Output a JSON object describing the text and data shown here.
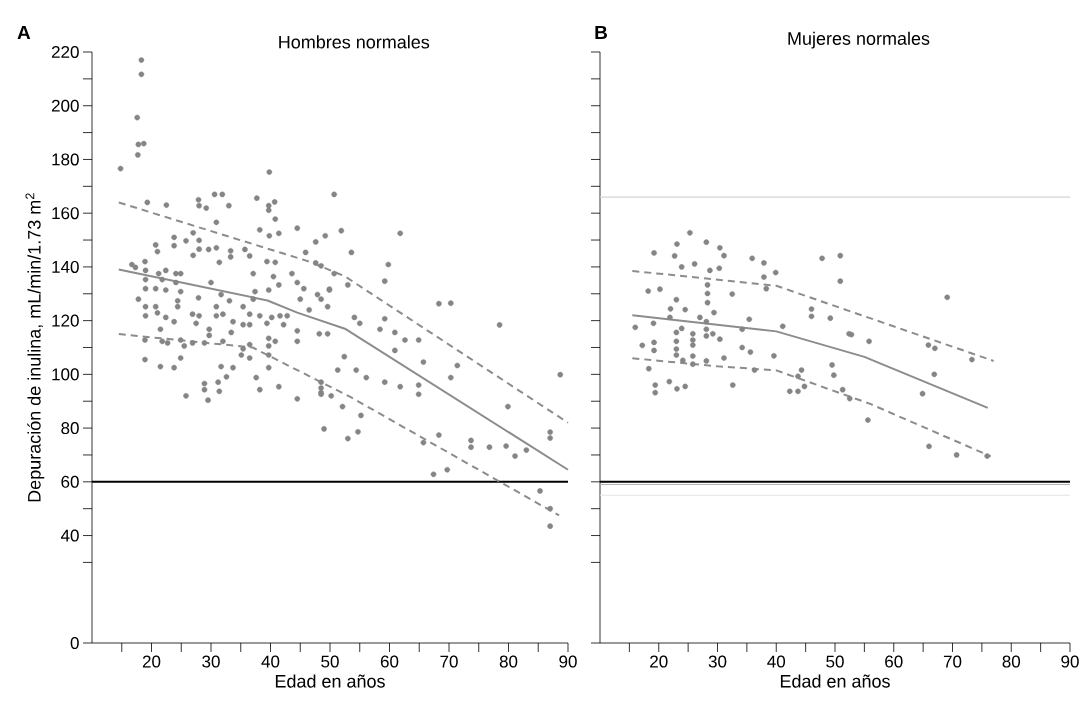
{
  "chart_data": [
    {
      "type": "scatter",
      "marker": "circle",
      "title": "Hombres normales",
      "xlabel": "Edad en años",
      "ylabel": "Depuración de inulina, mL/min/1.73 m$^{2}$",
      "annotations": [
        "A"
      ],
      "xlim": [
        10,
        90
      ],
      "ylim": [
        0,
        220
      ],
      "xticks": [
        {
          "value": 15,
          "label": null
        },
        20,
        {
          "value": 25,
          "label": null
        },
        30,
        {
          "value": 35,
          "label": null
        },
        40,
        {
          "value": 45,
          "label": null
        },
        50,
        {
          "value": 55,
          "label": null
        },
        60,
        {
          "value": 65,
          "label": null
        },
        70,
        {
          "value": 75,
          "label": null
        },
        80,
        {
          "value": 85,
          "label": null
        },
        90
      ],
      "yticks": [
        0,
        {
          "value": 30,
          "label": null
        },
        40,
        {
          "value": 50,
          "label": null
        },
        60,
        {
          "value": 70,
          "label": null
        },
        80,
        {
          "value": 90,
          "label": null
        },
        100,
        {
          "value": 110,
          "label": null
        },
        120,
        {
          "value": 130,
          "label": null
        },
        140,
        {
          "value": 150,
          "label": null
        },
        160,
        {
          "value": 170,
          "label": null
        },
        180,
        {
          "value": 190,
          "label": null
        },
        200,
        {
          "value": 210,
          "label": null
        },
        220
      ],
      "ref_lines": [
        {
          "axis": "y",
          "value": 60,
          "color": "#000000"
        }
      ],
      "series": [
        {
          "color": "#858585",
          "x": [
            18.3,
            18.3,
            17.6,
            17.8,
            18.7,
            17.7,
            14.8,
            39.8,
            30.6,
            31.9,
            37.7,
            50.7,
            27.9,
            28,
            29.2,
            33,
            22.5,
            19.3,
            40.7,
            39.7,
            39.7,
            40.8,
            30.9,
            44.5,
            38.2,
            41.4,
            39.8,
            27,
            23.8,
            23.8,
            25.8,
            28,
            28,
            20.7,
            21,
            27,
            29.6,
            30.9,
            33.3,
            33.3,
            35.7,
            36.5,
            45.9,
            47.6,
            49.2,
            18.9,
            31.4,
            39.4,
            40.8,
            47.6,
            48.5,
            50.7,
            16.7,
            17.3,
            19,
            19,
            19,
            21.2,
            22.4,
            24.1,
            24.1,
            24.9,
            24.9,
            21.8,
            20.7,
            22.4,
            24.4,
            24.4,
            17.8,
            19,
            20.7,
            21,
            22.4,
            19,
            23.8,
            21.5,
            18.9,
            18.9,
            21.5,
            23.8,
            21.8,
            22.7,
            24.9,
            25.5,
            24.9,
            27.9,
            30,
            31.7,
            33.1,
            35.4,
            37.1,
            37.4,
            37.1,
            39.7,
            40.5,
            41.4,
            43.6,
            44.5,
            45.6,
            45,
            47.9,
            48.5,
            49.9,
            46.5,
            49.6,
            26.9,
            27.5,
            28,
            30.9,
            30.9,
            32,
            33.7,
            35.4,
            36.5,
            38.2,
            40.2,
            41.6,
            42.8,
            36.5,
            39.4,
            42.2,
            44.5,
            33.4,
            29.7,
            29.7,
            44.5,
            48.2,
            49.6,
            26.9,
            28.9,
            32,
            35.4,
            36.5,
            39.7,
            39.7,
            39.7,
            40.8,
            35.1,
            36.5,
            31.7,
            33.7,
            39.7,
            37.6,
            32.6,
            31.2,
            28.9,
            28.9,
            31.4,
            25.8,
            29.5,
            38.2,
            41.4,
            44.5,
            48.5,
            48.5,
            51.9,
            61.8,
            53.6,
            59.8,
            59.2,
            68.3,
            70.3,
            78.5,
            49.9,
            53,
            59.2,
            58.4,
            60.9,
            62.6,
            64.9,
            54.1,
            55,
            60.9,
            65.7,
            71.4,
            52.4,
            51.3,
            54.4,
            56.1,
            59.2,
            61.8,
            64.9,
            64.9,
            70.3,
            79.9,
            87,
            87,
            88.7,
            48.5,
            48.5,
            50.2,
            52.1,
            55.2,
            49,
            53,
            54.7,
            65.7,
            68.3,
            73.7,
            73.7,
            76.8,
            79.6,
            81.1,
            83,
            69.7,
            67.4,
            85.3,
            87,
            87
          ],
          "values": [
            217,
            211.7,
            195.6,
            185.6,
            185.9,
            181.7,
            176.6,
            175.3,
            167,
            167,
            165.6,
            167,
            165,
            162.8,
            161.9,
            162.8,
            163,
            164,
            164.2,
            162.8,
            161.1,
            157.8,
            156.6,
            154.4,
            153.8,
            152.5,
            151.6,
            152.7,
            151,
            147.9,
            149.7,
            149.9,
            146.6,
            148.2,
            145.7,
            144.3,
            146.5,
            147.1,
            146,
            143.7,
            146.5,
            144.1,
            145.4,
            149.3,
            151.6,
            142,
            141.7,
            142,
            141.7,
            141.5,
            140.4,
            137.5,
            140.9,
            139.8,
            138.7,
            135.3,
            131.9,
            137.5,
            138.7,
            137.5,
            134.2,
            130.8,
            137.5,
            135.3,
            131.9,
            131.4,
            127.4,
            125.2,
            128,
            125.2,
            125.2,
            122.9,
            121.2,
            121.8,
            119.6,
            116.8,
            112.8,
            105.5,
            102.9,
            102.5,
            112.3,
            111.7,
            112.8,
            110.6,
            106.1,
            128.5,
            134.2,
            129.7,
            127.4,
            125.2,
            137.5,
            130.8,
            128,
            131.4,
            136.4,
            133.3,
            137.5,
            134.2,
            131.9,
            128,
            129.7,
            128,
            131.4,
            124,
            125.2,
            122.4,
            119,
            121.8,
            125.2,
            121.8,
            122.4,
            119.6,
            118.5,
            122.4,
            121.8,
            121.2,
            121.8,
            121.8,
            118.5,
            119,
            118.5,
            116.2,
            115.6,
            116.8,
            114.5,
            112.3,
            115.1,
            115.1,
            111.7,
            111.7,
            112.3,
            109.5,
            111.1,
            113.4,
            110.6,
            107.2,
            112.3,
            107.2,
            106.1,
            102.9,
            102.5,
            102.5,
            98.8,
            99.1,
            97.1,
            96.6,
            94.3,
            93.7,
            92,
            90.4,
            94.3,
            95.4,
            90.9,
            97.1,
            93.2,
            153.5,
            152.5,
            145.4,
            140.9,
            134.7,
            126.3,
            126.5,
            118.4,
            131.7,
            133.3,
            120.7,
            116.8,
            115.6,
            112.8,
            112.8,
            121.2,
            119,
            108.9,
            104.6,
            103.3,
            106.6,
            101.6,
            101.6,
            98.8,
            97.1,
            95.4,
            96,
            92.6,
            98.8,
            88,
            78.5,
            76.3,
            99.9,
            94.9,
            92.6,
            92,
            88,
            84.7,
            79.7,
            76.1,
            78.6,
            74.6,
            77.4,
            75.4,
            72.9,
            72.9,
            73.3,
            69.6,
            71.8,
            64.5,
            62.8,
            56.6,
            50,
            43.5
          ]
        },
        {
          "type": "line",
          "color": "#8c8c8c",
          "marker": "none",
          "line_style": "solid",
          "x": [
            14.5,
            39.5,
            44.5,
            52.5,
            90
          ],
          "values": [
            139,
            127.5,
            123,
            117,
            64.5
          ]
        },
        {
          "type": "line",
          "color": "#8c8c8c",
          "marker": "none",
          "line_style": "dashed",
          "x": [
            14.5,
            46.5,
            52.5,
            90
          ],
          "values": [
            164,
            142,
            136.5,
            82
          ]
        },
        {
          "type": "line",
          "color": "#8c8c8c",
          "marker": "none",
          "line_style": "dashed",
          "x": [
            14.5,
            37,
            53.5,
            88.5
          ],
          "values": [
            115,
            110,
            91.5,
            47.5
          ]
        }
      ]
    },
    {
      "type": "scatter",
      "marker": "circle",
      "title": "Mujeres normales",
      "xlabel": "Edad en años",
      "annotations": [
        "B"
      ],
      "tick_labels": "x",
      "xlim": [
        10,
        90
      ],
      "ylim": [
        0,
        220
      ],
      "xticks": [
        {
          "value": 15,
          "label": null
        },
        20,
        {
          "value": 25,
          "label": null
        },
        30,
        {
          "value": 35,
          "label": null
        },
        40,
        {
          "value": 45,
          "label": null
        },
        50,
        {
          "value": 55,
          "label": null
        },
        60,
        {
          "value": 65,
          "label": null
        },
        70,
        {
          "value": 75,
          "label": null
        },
        80,
        {
          "value": 85,
          "label": null
        },
        90
      ],
      "yticks": [
        {
          "value": 0,
          "label": null
        },
        {
          "value": 30,
          "label": null
        },
        {
          "value": 40,
          "label": null
        },
        {
          "value": 50,
          "label": null
        },
        {
          "value": 60,
          "label": null
        },
        {
          "value": 70,
          "label": null
        },
        {
          "value": 80,
          "label": null
        },
        {
          "value": 90,
          "label": null
        },
        {
          "value": 100,
          "label": null
        },
        {
          "value": 110,
          "label": null
        },
        {
          "value": 120,
          "label": null
        },
        {
          "value": 130,
          "label": null
        },
        {
          "value": 140,
          "label": null
        },
        {
          "value": 150,
          "label": null
        },
        {
          "value": 160,
          "label": null
        },
        {
          "value": 170,
          "label": null
        },
        {
          "value": 180,
          "label": null
        },
        {
          "value": 190,
          "label": null
        },
        {
          "value": 200,
          "label": null
        },
        {
          "value": 210,
          "label": null
        },
        {
          "value": 220,
          "label": null
        }
      ],
      "ref_lines": [
        {
          "axis": "y",
          "value": 166,
          "color": "#d4d4d4"
        },
        {
          "axis": "y",
          "value": 59,
          "color": "#b4b4b4"
        },
        {
          "axis": "y",
          "value": 55,
          "color": "#e4e4e4"
        },
        {
          "axis": "y",
          "value": 60,
          "color": "#000000"
        }
      ],
      "series": [
        {
          "color": "#858585",
          "x": [
            25.3,
            23.1,
            28.1,
            30.4,
            31.1,
            19.2,
            22.7,
            35.9,
            37.9,
            47.8,
            50.9,
            23.9,
            26.1,
            28.7,
            30.3,
            39.9,
            37.9,
            50.9,
            18.2,
            20.2,
            28.3,
            28.3,
            28.3,
            32.5,
            38.3,
            23,
            22,
            24.5,
            29.4,
            27,
            46,
            46,
            49.2,
            35.4,
            41.1,
            16,
            19.1,
            21.9,
            28.1,
            28.1,
            28.1,
            23.9,
            23,
            23,
            23,
            25.8,
            25.8,
            25.8,
            29.2,
            30.4,
            34.2,
            34.2,
            35.6,
            52.4,
            55.8,
            17.2,
            19.2,
            19.2,
            39.6,
            31.1,
            25.8,
            25.8,
            24.1,
            28.1,
            23,
            18.3,
            49.5,
            49.8,
            36.3,
            44.3,
            43.7,
            19.4,
            19.4,
            21.8,
            23.1,
            24.5,
            32.6,
            42.3,
            43.7,
            44.8,
            51.3,
            52.5,
            55.6,
            69.1,
            52.8,
            65.9,
            67,
            73.3,
            66.9,
            64.9,
            66,
            70.7,
            75.9
          ],
          "values": [
            152.7,
            148.5,
            149.2,
            147.1,
            144.2,
            145.2,
            144.1,
            143.2,
            141.5,
            143.2,
            144.2,
            140,
            141.1,
            138.7,
            139.5,
            137.9,
            136.2,
            134.7,
            131,
            131.7,
            133.3,
            130.1,
            126.7,
            129.9,
            131.9,
            127.8,
            124.4,
            124.1,
            123,
            121.2,
            124.3,
            121.6,
            120.9,
            120.5,
            117.9,
            117.5,
            119,
            121.2,
            119.6,
            116.8,
            114.3,
            117.1,
            115.6,
            112.3,
            109.4,
            115.1,
            112.8,
            110.9,
            115.1,
            113.1,
            116.8,
            110,
            108.3,
            115.1,
            112.3,
            110.8,
            111.9,
            108.9,
            106.9,
            106.1,
            106.8,
            103.8,
            105.2,
            105,
            107.2,
            102.1,
            103.5,
            99.7,
            101.6,
            101.6,
            99.3,
            96,
            93.2,
            97.3,
            94.6,
            95.5,
            96,
            93.7,
            93.7,
            95.5,
            94.3,
            91,
            83,
            128.7,
            114.8,
            110.9,
            109.7,
            105.5,
            100,
            92.8,
            73.2,
            70,
            69.6
          ]
        },
        {
          "type": "line",
          "color": "#8c8c8c",
          "marker": "none",
          "line_style": "solid",
          "x": [
            15.5,
            40,
            55,
            76
          ],
          "values": [
            122,
            116,
            106.5,
            87.5
          ]
        },
        {
          "type": "line",
          "color": "#8c8c8c",
          "marker": "none",
          "line_style": "dashed",
          "x": [
            15.5,
            40,
            77
          ],
          "values": [
            138.5,
            133,
            105
          ]
        },
        {
          "type": "line",
          "color": "#8c8c8c",
          "marker": "none",
          "line_style": "dashed",
          "x": [
            15.5,
            30,
            40,
            56,
            76.5
          ],
          "values": [
            106,
            103,
            101.5,
            89,
            69.5
          ]
        }
      ]
    }
  ]
}
